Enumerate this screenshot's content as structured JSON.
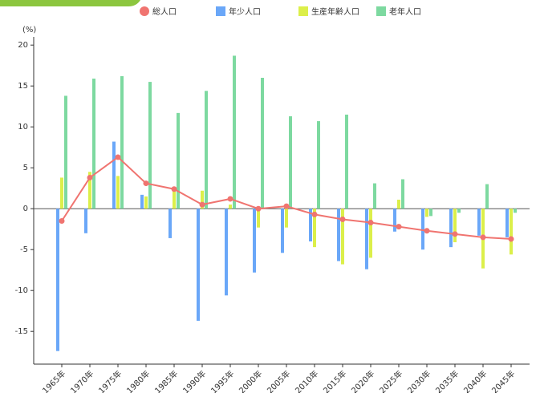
{
  "chart_data": {
    "type": "bar",
    "y_label": "(%)",
    "categories": [
      "1965年",
      "1970年",
      "1975年",
      "1980年",
      "1985年",
      "1990年",
      "1995年",
      "2000年",
      "2005年",
      "2010年",
      "2015年",
      "2020年",
      "2025年",
      "2030年",
      "2035年",
      "2040年",
      "2045年"
    ],
    "series": [
      {
        "name": "総人口",
        "type": "line",
        "color": "#f07470",
        "values": [
          -1.5,
          3.8,
          6.3,
          3.1,
          2.4,
          0.5,
          1.2,
          0.0,
          0.3,
          -0.7,
          -1.3,
          -1.7,
          -2.2,
          -2.7,
          -3.1,
          -3.5,
          -3.7
        ]
      },
      {
        "name": "年少人口",
        "type": "bar",
        "color": "#6aa7f8",
        "values": [
          -17.4,
          -3.0,
          8.2,
          1.7,
          -3.6,
          -13.7,
          -10.6,
          -7.8,
          -5.4,
          -4.0,
          -6.4,
          -7.4,
          -2.8,
          -5.0,
          -4.7,
          -3.3,
          -3.5
        ]
      },
      {
        "name": "生産年齢人口",
        "type": "bar",
        "color": "#dcef4a",
        "values": [
          3.8,
          4.5,
          4.0,
          1.5,
          2.2,
          2.2,
          0.5,
          -2.3,
          -2.3,
          -4.7,
          -6.8,
          -6.0,
          1.1,
          -1.0,
          -4.1,
          -7.3,
          -5.6
        ]
      },
      {
        "name": "老年人口",
        "type": "bar",
        "color": "#7dd9a0",
        "values": [
          13.8,
          15.9,
          16.2,
          15.5,
          11.7,
          14.4,
          18.7,
          16.0,
          11.3,
          10.7,
          11.5,
          3.1,
          3.6,
          -0.9,
          -0.5,
          3.0,
          -0.5
        ]
      }
    ],
    "ylim": [
      -19,
      21
    ],
    "yticks": [
      -15,
      -10,
      -5,
      0,
      5,
      10,
      15,
      20
    ]
  }
}
